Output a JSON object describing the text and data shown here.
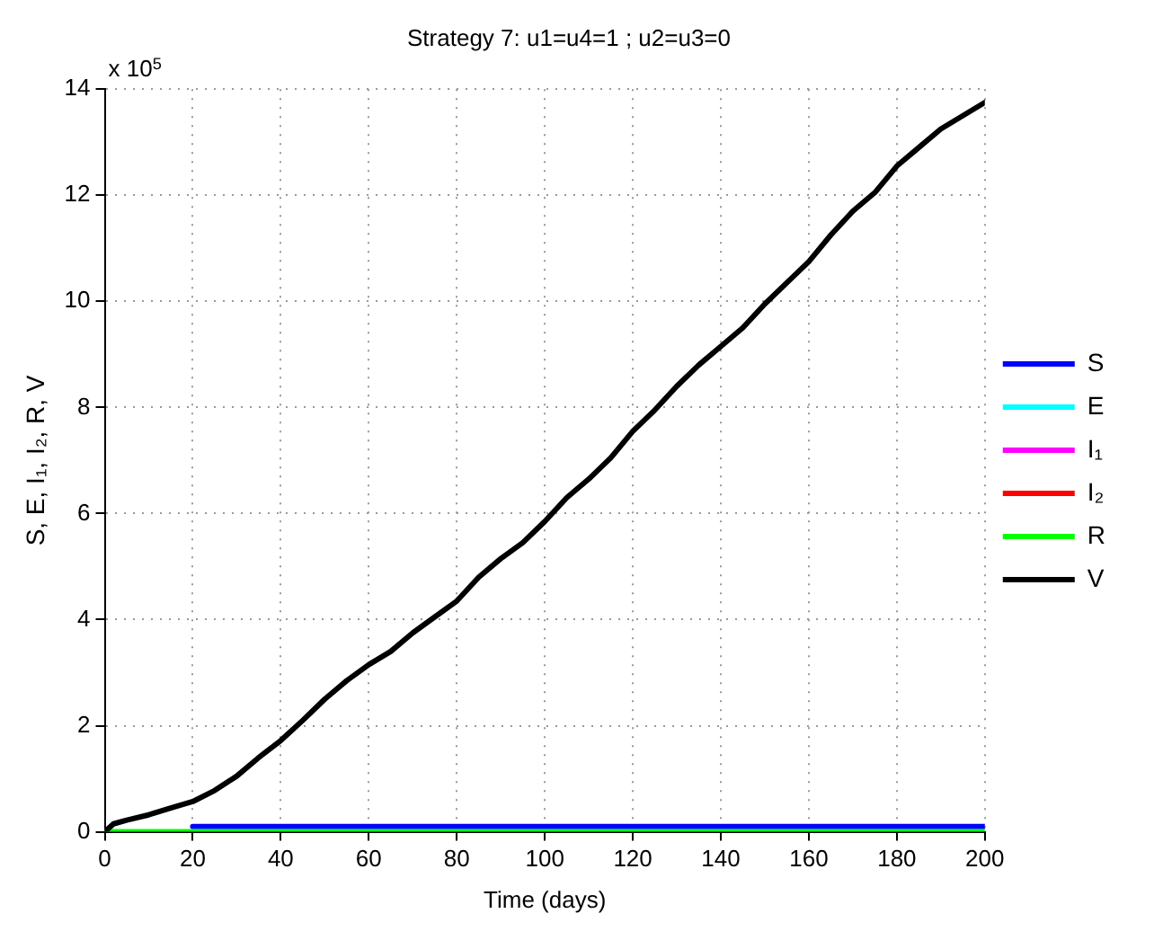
{
  "chart_data": {
    "type": "line",
    "title": "Strategy 7: u1=u4=1 ; u2=u3=0",
    "xlabel": "Time (days)",
    "ylabel": "S, E, I₁, I₂, R, V",
    "annotations": [
      "x 10$^{5}$"
    ],
    "xlim": [
      0,
      200
    ],
    "xticks": [
      0,
      20,
      40,
      60,
      80,
      100,
      120,
      140,
      160,
      180,
      200
    ],
    "ylim": [
      0,
      14
    ],
    "yticks": [
      0,
      2,
      4,
      6,
      8,
      10,
      12,
      14
    ],
    "grid": true,
    "legend": "right",
    "marker": "none",
    "line_style": "solid",
    "series": [
      {
        "name": "S",
        "color": "#0000ff",
        "x": [
          20,
          200
        ],
        "values": [
          0.1,
          0.1
        ]
      },
      {
        "name": "E",
        "color": "#00ffff"
      },
      {
        "name": "I₁",
        "color": "#ff00ff"
      },
      {
        "name": "I₂",
        "color": "#ff0000"
      },
      {
        "name": "R",
        "color": "#00ff00",
        "x": [
          0,
          200
        ],
        "values": [
          0,
          0
        ]
      },
      {
        "name": "V",
        "color": "#000000",
        "x": [
          0,
          2,
          5,
          10,
          15,
          20,
          25,
          30,
          35,
          40,
          45,
          50,
          55,
          60,
          65,
          70,
          75,
          80,
          85,
          90,
          95,
          100,
          105,
          110,
          115,
          120,
          125,
          130,
          135,
          140,
          145,
          150,
          155,
          160,
          165,
          170,
          175,
          180,
          185,
          190,
          195,
          200
        ],
        "values": [
          0,
          0.15,
          0.22,
          0.32,
          0.45,
          0.57,
          0.78,
          1.05,
          1.4,
          1.72,
          2.1,
          2.5,
          2.85,
          3.15,
          3.4,
          3.75,
          4.05,
          4.35,
          4.8,
          5.15,
          5.45,
          5.85,
          6.3,
          6.65,
          7.05,
          7.55,
          7.95,
          8.4,
          8.8,
          9.15,
          9.5,
          9.95,
          10.35,
          10.75,
          11.25,
          11.7,
          12.05,
          12.55,
          12.9,
          13.25,
          13.5,
          13.75
        ]
      }
    ]
  }
}
